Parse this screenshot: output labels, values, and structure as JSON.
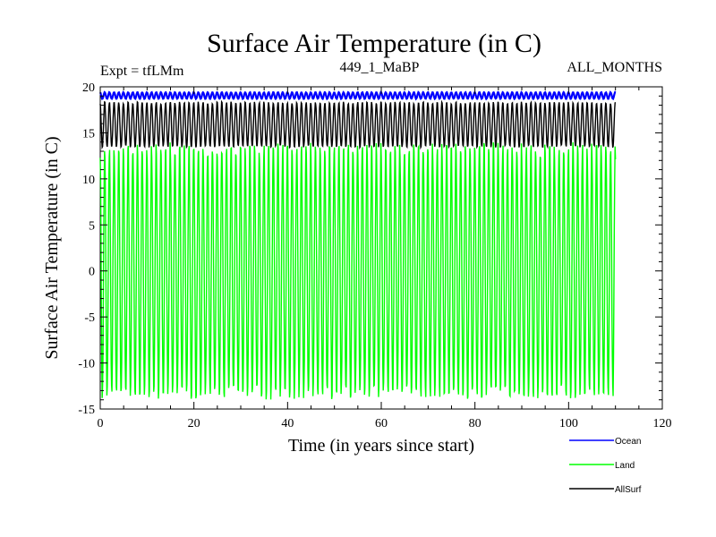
{
  "chart_data": {
    "type": "line",
    "title": "Surface Air Temperature (in C)",
    "subtitle_left": "Expt = tfLMm",
    "subtitle_center": "449_1_MaBP",
    "subtitle_right": "ALL_MONTHS",
    "xlabel": "Time (in years since start)",
    "ylabel": "Surface Air Temperature (in C)",
    "xlim": [
      0,
      120
    ],
    "ylim": [
      -15,
      20
    ],
    "xticks": [
      0,
      20,
      40,
      60,
      80,
      100,
      120
    ],
    "yticks": [
      -15,
      -10,
      -5,
      0,
      5,
      10,
      15,
      20
    ],
    "x_range_of_data": [
      0,
      110
    ],
    "samples_per_year": 12,
    "series": [
      {
        "name": "Ocean",
        "color": "#0000ff",
        "annual_min": 18.7,
        "annual_max": 19.4,
        "legend_label": "Ocean"
      },
      {
        "name": "Land",
        "color": "#00ff00",
        "annual_min": -13.5,
        "annual_max": 13.5,
        "legend_label": "Land"
      },
      {
        "name": "AllSurf",
        "color": "#000000",
        "annual_min": 13.5,
        "annual_max": 18.3,
        "legend_label": "AllSurf"
      }
    ]
  }
}
